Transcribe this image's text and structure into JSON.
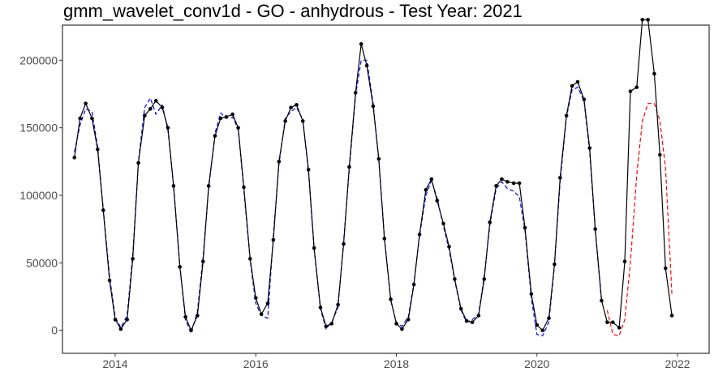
{
  "chart_data": {
    "type": "line",
    "title": "gmm_wavelet_conv1d - GO - anhydrous - Test Year: 2021",
    "xlabel": "",
    "ylabel": "",
    "xlim": [
      2013.25,
      2022.45
    ],
    "ylim": [
      -17000,
      226000
    ],
    "x_ticks": [
      2014,
      2016,
      2018,
      2020,
      2022
    ],
    "x_tick_labels": [
      "2014",
      "2016",
      "2018",
      "2020",
      "2022"
    ],
    "y_ticks": [
      0,
      50000,
      100000,
      150000,
      200000
    ],
    "y_tick_labels": [
      "0",
      "50000",
      "100000",
      "150000",
      "200000"
    ],
    "grid": false,
    "legend": "none",
    "colors": {
      "actual": "#000000",
      "fitted": "#0000ff",
      "forecast": "#ff0000"
    },
    "series": [
      {
        "style": "solid-with-points",
        "color": "#000000",
        "x": [
          2013.42,
          2013.5,
          2013.58,
          2013.67,
          2013.75,
          2013.83,
          2013.92,
          2014.0,
          2014.08,
          2014.17,
          2014.25,
          2014.33,
          2014.42,
          2014.5,
          2014.58,
          2014.67,
          2014.75,
          2014.83,
          2014.92,
          2015.0,
          2015.08,
          2015.17,
          2015.25,
          2015.33,
          2015.42,
          2015.5,
          2015.58,
          2015.67,
          2015.75,
          2015.83,
          2015.92,
          2016.0,
          2016.08,
          2016.17,
          2016.25,
          2016.33,
          2016.42,
          2016.5,
          2016.58,
          2016.67,
          2016.75,
          2016.83,
          2016.92,
          2017.0,
          2017.08,
          2017.17,
          2017.25,
          2017.33,
          2017.42,
          2017.5,
          2017.58,
          2017.67,
          2017.75,
          2017.83,
          2017.92,
          2018.0,
          2018.08,
          2018.17,
          2018.25,
          2018.33,
          2018.42,
          2018.5,
          2018.58,
          2018.67,
          2018.75,
          2018.83,
          2018.92,
          2019.0,
          2019.08,
          2019.17,
          2019.25,
          2019.33,
          2019.42,
          2019.5,
          2019.58,
          2019.67,
          2019.75,
          2019.83,
          2019.92,
          2020.0,
          2020.08,
          2020.17,
          2020.25,
          2020.33,
          2020.42,
          2020.5,
          2020.58,
          2020.67,
          2020.75,
          2020.83,
          2020.92,
          2021.0,
          2021.08,
          2021.17,
          2021.25,
          2021.33,
          2021.42,
          2021.5,
          2021.58,
          2021.67,
          2021.75,
          2021.83,
          2021.92
        ],
        "values": [
          128000,
          157000,
          168000,
          157000,
          134000,
          89000,
          37000,
          8000,
          1000,
          8000,
          53000,
          124000,
          159000,
          164000,
          170000,
          165000,
          150000,
          107000,
          47000,
          10000,
          0,
          11000,
          51000,
          107000,
          144000,
          157000,
          158000,
          160000,
          150000,
          106000,
          53000,
          24000,
          12000,
          20000,
          67000,
          125000,
          155000,
          165000,
          167000,
          155000,
          119000,
          61000,
          17000,
          3000,
          5000,
          19000,
          64000,
          121000,
          176000,
          212000,
          196000,
          166000,
          127000,
          68000,
          23000,
          5000,
          1000,
          8000,
          34000,
          71000,
          104000,
          112000,
          96000,
          79000,
          62000,
          38000,
          16000,
          7000,
          6000,
          11000,
          38000,
          80000,
          107000,
          112000,
          110000,
          109000,
          109000,
          76000,
          27000,
          4000,
          0,
          9000,
          49000,
          113000,
          159000,
          181000,
          184000,
          171000,
          135000,
          75000,
          22000,
          6000,
          6000,
          2000,
          51000,
          177000,
          180000,
          230000,
          230000,
          190000,
          130000,
          46000,
          11000
        ]
      },
      {
        "style": "dashed",
        "color": "#0000ff",
        "x": [
          2013.42,
          2013.5,
          2013.58,
          2013.67,
          2013.75,
          2013.83,
          2013.92,
          2014.0,
          2014.08,
          2014.17,
          2014.25,
          2014.33,
          2014.42,
          2014.5,
          2014.58,
          2014.67,
          2014.75,
          2014.83,
          2014.92,
          2015.0,
          2015.08,
          2015.17,
          2015.25,
          2015.33,
          2015.42,
          2015.5,
          2015.58,
          2015.67,
          2015.75,
          2015.83,
          2015.92,
          2016.0,
          2016.08,
          2016.17,
          2016.25,
          2016.33,
          2016.42,
          2016.5,
          2016.58,
          2016.67,
          2016.75,
          2016.83,
          2016.92,
          2017.0,
          2017.08,
          2017.17,
          2017.25,
          2017.33,
          2017.42,
          2017.5,
          2017.58,
          2017.67,
          2017.75,
          2017.83,
          2017.92,
          2018.0,
          2018.08,
          2018.17,
          2018.25,
          2018.33,
          2018.42,
          2018.5,
          2018.58,
          2018.67,
          2018.75,
          2018.83,
          2018.92,
          2019.0,
          2019.08,
          2019.17,
          2019.25,
          2019.33,
          2019.42,
          2019.5,
          2019.58,
          2019.67,
          2019.75,
          2019.83,
          2019.92,
          2020.0,
          2020.08,
          2020.17,
          2020.25,
          2020.33,
          2020.42,
          2020.5,
          2020.58,
          2020.67,
          2020.75,
          2020.83,
          2020.92
        ],
        "values": [
          132000,
          152000,
          164000,
          162000,
          136000,
          90000,
          40000,
          10000,
          2000,
          11000,
          56000,
          125000,
          165000,
          172000,
          160000,
          167000,
          148000,
          108000,
          48000,
          8000,
          -2000,
          14000,
          54000,
          105000,
          146000,
          161000,
          157000,
          158000,
          149000,
          104000,
          52000,
          20000,
          11000,
          9000,
          70000,
          123000,
          157000,
          162000,
          165000,
          156000,
          117000,
          60000,
          16000,
          1000,
          6000,
          17000,
          66000,
          119000,
          174000,
          200000,
          200000,
          168000,
          126000,
          69000,
          22000,
          6000,
          3000,
          10000,
          35000,
          70000,
          100000,
          111000,
          98000,
          77000,
          60000,
          37000,
          15000,
          6000,
          8000,
          12000,
          40000,
          78000,
          105000,
          110000,
          105000,
          103000,
          99000,
          74000,
          24000,
          -3000,
          -4000,
          6000,
          48000,
          110000,
          158000,
          178000,
          180000,
          170000,
          132000,
          74000,
          21000
        ]
      },
      {
        "style": "dashed",
        "color": "#ff0000",
        "x": [
          2021.0,
          2021.08,
          2021.17,
          2021.25,
          2021.33,
          2021.42,
          2021.5,
          2021.58,
          2021.67,
          2021.75,
          2021.83,
          2021.92
        ],
        "values": [
          15000,
          -3000,
          -4000,
          8000,
          50000,
          115000,
          155000,
          168000,
          168000,
          155000,
          120000,
          27000
        ]
      }
    ]
  }
}
